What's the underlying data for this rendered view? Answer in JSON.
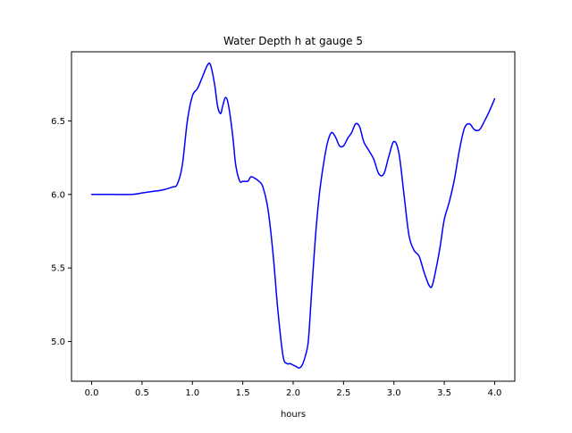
{
  "chart_data": {
    "type": "line",
    "title": "Water Depth h at gauge 5",
    "xlabel": "hours",
    "ylabel": "",
    "xlim": [
      -0.2,
      4.2
    ],
    "ylim": [
      4.73,
      6.97
    ],
    "xticks": [
      0.0,
      0.5,
      1.0,
      1.5,
      2.0,
      2.5,
      3.0,
      3.5,
      4.0
    ],
    "xtick_labels": [
      "0.0",
      "0.5",
      "1.0",
      "1.5",
      "2.0",
      "2.5",
      "3.0",
      "3.5",
      "4.0"
    ],
    "yticks": [
      5.0,
      5.5,
      6.0,
      6.5
    ],
    "ytick_labels": [
      "5.0",
      "5.5",
      "6.0",
      "6.5"
    ],
    "grid": false,
    "legend": null,
    "series": [
      {
        "color": "#0000ff",
        "x": [
          0.0,
          0.2,
          0.4,
          0.5,
          0.6,
          0.7,
          0.8,
          0.85,
          0.9,
          0.95,
          1.0,
          1.05,
          1.1,
          1.15,
          1.18,
          1.22,
          1.25,
          1.28,
          1.3,
          1.33,
          1.36,
          1.4,
          1.43,
          1.47,
          1.5,
          1.55,
          1.58,
          1.62,
          1.66,
          1.7,
          1.75,
          1.8,
          1.85,
          1.9,
          1.94,
          1.97,
          2.0,
          2.03,
          2.06,
          2.09,
          2.12,
          2.15,
          2.18,
          2.22,
          2.26,
          2.3,
          2.34,
          2.38,
          2.42,
          2.46,
          2.5,
          2.54,
          2.58,
          2.62,
          2.66,
          2.7,
          2.75,
          2.8,
          2.85,
          2.9,
          2.95,
          3.0,
          3.05,
          3.1,
          3.15,
          3.2,
          3.25,
          3.3,
          3.35,
          3.38,
          3.42,
          3.46,
          3.5,
          3.55,
          3.6,
          3.65,
          3.7,
          3.75,
          3.8,
          3.85,
          3.9,
          3.95,
          4.0
        ],
        "y": [
          6.0,
          6.0,
          6.0,
          6.01,
          6.02,
          6.03,
          6.05,
          6.07,
          6.2,
          6.5,
          6.67,
          6.72,
          6.8,
          6.88,
          6.88,
          6.75,
          6.6,
          6.55,
          6.6,
          6.66,
          6.6,
          6.4,
          6.2,
          6.09,
          6.09,
          6.09,
          6.12,
          6.11,
          6.09,
          6.05,
          5.9,
          5.6,
          5.2,
          4.9,
          4.85,
          4.85,
          4.84,
          4.83,
          4.82,
          4.84,
          4.9,
          5.0,
          5.3,
          5.7,
          6.0,
          6.2,
          6.35,
          6.42,
          6.39,
          6.33,
          6.33,
          6.38,
          6.42,
          6.48,
          6.46,
          6.36,
          6.3,
          6.24,
          6.14,
          6.14,
          6.26,
          6.36,
          6.28,
          6.0,
          5.72,
          5.62,
          5.58,
          5.47,
          5.38,
          5.38,
          5.5,
          5.65,
          5.83,
          5.95,
          6.1,
          6.3,
          6.45,
          6.48,
          6.44,
          6.44,
          6.5,
          6.57,
          6.65
        ]
      }
    ]
  }
}
